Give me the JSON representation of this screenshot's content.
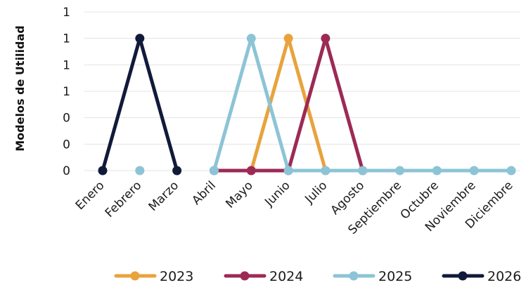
{
  "chart_data": {
    "type": "line",
    "title": "",
    "xlabel": "",
    "ylabel": "Modelos de Utilidad",
    "categories": [
      "Enero",
      "Febrero",
      "Marzo",
      "Abril",
      "Mayo",
      "Junio",
      "Julio",
      "Agosto",
      "Septiembre",
      "Octubre",
      "Noviembre",
      "Diciembre"
    ],
    "y_tick_labels": [
      "0",
      "0",
      "0",
      "1",
      "1",
      "1",
      "1"
    ],
    "ylim": [
      0,
      1.2
    ],
    "grid": true,
    "legend_position": "bottom",
    "series": [
      {
        "name": "2023",
        "color": "#E8A33D",
        "values": [
          null,
          null,
          null,
          null,
          0,
          1,
          0,
          null,
          null,
          null,
          null,
          null
        ]
      },
      {
        "name": "2024",
        "color": "#9C2A55",
        "values": [
          null,
          null,
          null,
          0,
          0,
          0,
          1,
          0,
          null,
          null,
          null,
          null
        ]
      },
      {
        "name": "2025",
        "color": "#8CC4D6",
        "values": [
          null,
          0,
          null,
          0,
          1,
          0,
          0,
          0,
          0,
          0,
          0,
          0
        ]
      },
      {
        "name": "2026",
        "color": "#121A3A",
        "values": [
          0,
          1,
          0,
          null,
          null,
          null,
          null,
          null,
          null,
          null,
          null,
          null
        ]
      }
    ]
  }
}
